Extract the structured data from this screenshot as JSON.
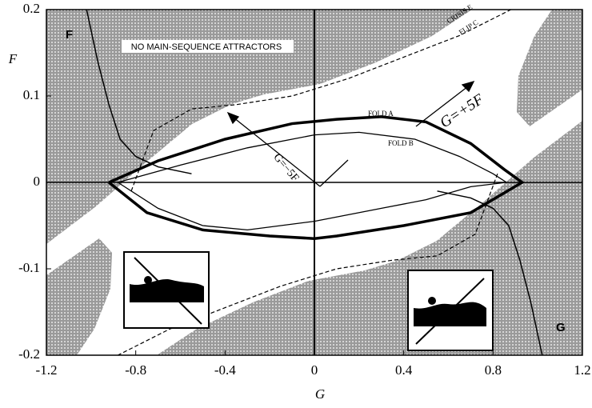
{
  "chart_data": {
    "type": "line",
    "x_label": "G",
    "y_label": "F",
    "corner_label_top": "F",
    "corner_label_bottom": "G",
    "annotations": [
      "NO MAIN-SEQUENCE ATTRACTORS",
      "G=+5F",
      "G=−5F"
    ],
    "xlim": [
      -1.2,
      1.2
    ],
    "ylim": [
      -0.2,
      0.2
    ],
    "xticks": [
      -1.2,
      -0.8,
      -0.4,
      0,
      0.4,
      0.8,
      1.2
    ],
    "yticks": [
      -0.2,
      -0.1,
      0,
      0.1,
      0.2
    ],
    "series": [
      {
        "name": "FOLD A",
        "color": "#000",
        "width": 3.5,
        "dashed": false,
        "x": [
          -0.92,
          -0.7,
          -0.4,
          -0.1,
          0.1,
          0.3,
          0.5,
          0.7,
          0.85,
          0.93,
          0.7,
          0.4,
          0.1,
          0,
          -0.2,
          -0.5,
          -0.75,
          -0.92
        ],
        "values": [
          0,
          0.025,
          0.05,
          0.068,
          0.073,
          0.076,
          0.07,
          0.045,
          0.015,
          0,
          -0.035,
          -0.05,
          -0.062,
          -0.065,
          -0.062,
          -0.055,
          -0.035,
          0
        ]
      },
      {
        "name": "FOLD B",
        "color": "#000",
        "width": 1.3,
        "dashed": false,
        "x": [
          -0.88,
          -0.6,
          -0.3,
          0,
          0.2,
          0.45,
          0.65,
          0.8,
          0.86,
          0.7,
          0.5,
          0.3,
          0,
          -0.3,
          -0.5,
          -0.7,
          -0.88
        ],
        "values": [
          0,
          0.02,
          0.04,
          0.055,
          0.058,
          0.05,
          0.03,
          0.01,
          0,
          -0.005,
          -0.02,
          -0.03,
          -0.045,
          -0.055,
          -0.05,
          -0.03,
          0
        ]
      },
      {
        "name": "FLIP C",
        "color": "#000",
        "width": 1.2,
        "dashed": true,
        "x": [
          -0.82,
          -0.72,
          -0.55,
          -0.35,
          -0.1,
          0.15,
          0.4,
          0.65,
          0.88
        ],
        "values": [
          -0.01,
          0.06,
          0.085,
          0.09,
          0.1,
          0.12,
          0.145,
          0.17,
          0.2
        ]
      },
      {
        "name": "CRISIS E",
        "color": "#000",
        "width": 1.2,
        "dashed": true,
        "x": [
          0.82,
          0.72,
          0.55,
          0.35,
          0.1,
          -0.15,
          -0.4,
          -0.65,
          -0.88
        ],
        "values": [
          0.01,
          -0.06,
          -0.085,
          -0.09,
          -0.1,
          -0.12,
          -0.145,
          -0.17,
          -0.2
        ]
      },
      {
        "color": "#000",
        "width": 1.5,
        "dashed": false,
        "x": [
          -1.02,
          -0.97,
          -0.92,
          -0.87,
          -0.8,
          -0.7,
          -0.55
        ],
        "values": [
          0.2,
          0.14,
          0.09,
          0.05,
          0.03,
          0.018,
          0.01
        ]
      },
      {
        "color": "#000",
        "width": 1.5,
        "dashed": false,
        "x": [
          1.02,
          0.97,
          0.92,
          0.87,
          0.8,
          0.7,
          0.55
        ],
        "values": [
          -0.2,
          -0.14,
          -0.09,
          -0.05,
          -0.03,
          -0.018,
          -0.01
        ]
      }
    ]
  }
}
